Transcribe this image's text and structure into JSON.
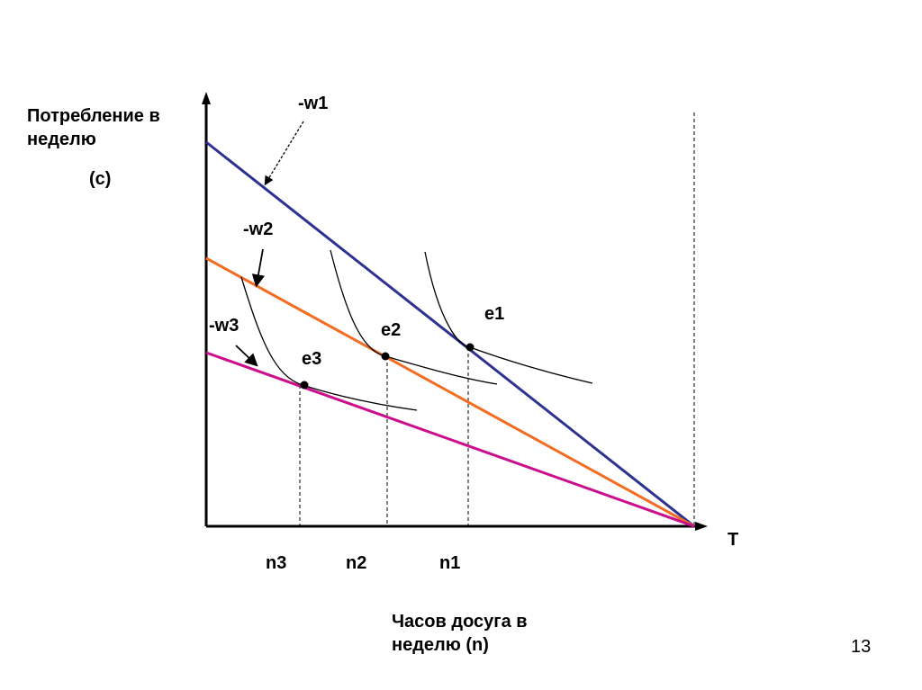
{
  "y_axis_label": {
    "line1": "Потребление в",
    "line2": "неделю",
    "symbol": "(с)"
  },
  "x_axis_label": {
    "line1": "Часов досуга в",
    "line2": "неделю (n)"
  },
  "axis_end_label": "T",
  "lines": [
    {
      "label": "-w1",
      "color": "#2e3192"
    },
    {
      "label": "-w2",
      "color": "#f26c21"
    },
    {
      "label": "-w3",
      "color": "#cc0e8c"
    }
  ],
  "points": [
    {
      "label": "e1",
      "x_label": "n1"
    },
    {
      "label": "e2",
      "x_label": "n2"
    },
    {
      "label": "e3",
      "x_label": "n3"
    }
  ],
  "page_number": "13"
}
